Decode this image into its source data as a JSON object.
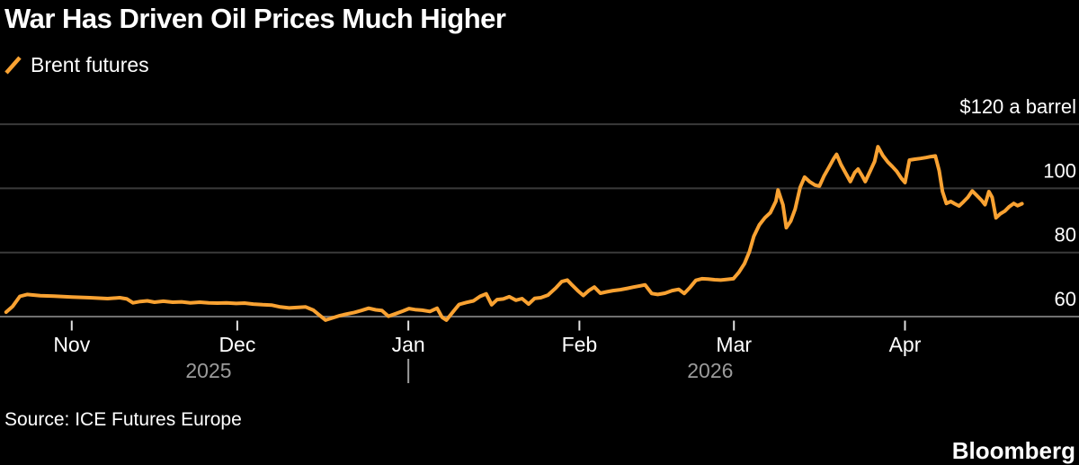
{
  "title": "War Has Driven Oil Prices Much Higher",
  "legend": {
    "label": "Brent futures"
  },
  "source": "Source: ICE Futures Europe",
  "brand": "Bloomberg",
  "colors": {
    "background": "#000000",
    "line": "#F9A232",
    "gridline": "#3A3A3A",
    "baseline": "#707070",
    "axis_text": "#FFFFFF",
    "muted_text": "#9B9B9B",
    "tick": "#E2E2E2"
  },
  "chart_data": {
    "type": "line",
    "title": "War Has Driven Oil Prices Much Higher",
    "unit_label": "$120 a barrel",
    "x_unit": "days since 2025-10-19",
    "x_range_dates": [
      "2025-10-20",
      "2026-04-22"
    ],
    "ylim": [
      56,
      124
    ],
    "grid": "horizontal",
    "legend_position": "top-left",
    "y_ticks": [
      {
        "value": 120,
        "label": "$120 a barrel"
      },
      {
        "value": 100,
        "label": "100"
      },
      {
        "value": 80,
        "label": "80"
      },
      {
        "value": 60,
        "label": "60"
      }
    ],
    "x_month_ticks": [
      {
        "label": "Nov",
        "day": 13,
        "date": "2025-11-01"
      },
      {
        "label": "Dec",
        "day": 43,
        "date": "2025-12-01"
      },
      {
        "label": "Jan",
        "day": 74,
        "date": "2026-01-01"
      },
      {
        "label": "Feb",
        "day": 105,
        "date": "2026-02-01"
      },
      {
        "label": "Mar",
        "day": 133,
        "date": "2026-03-01"
      },
      {
        "label": "Apr",
        "day": 164,
        "date": "2026-04-01"
      }
    ],
    "x_year_labels": [
      {
        "label": "2025",
        "center_day": 37.8
      },
      {
        "label": "2026",
        "center_day": 128.7
      }
    ],
    "year_boundary_day": 74,
    "series": [
      {
        "name": "Brent futures",
        "color": "#F9A232",
        "points": [
          [
            1.1,
            61.4
          ],
          [
            2.3,
            63.2
          ],
          [
            3.6,
            66.3
          ],
          [
            4.9,
            66.9
          ],
          [
            7.3,
            66.5
          ],
          [
            9.8,
            66.4
          ],
          [
            13,
            66.1
          ],
          [
            16.3,
            65.9
          ],
          [
            19.5,
            65.6
          ],
          [
            21.7,
            65.9
          ],
          [
            23,
            65.5
          ],
          [
            24.1,
            64.3
          ],
          [
            25.4,
            64.7
          ],
          [
            26.7,
            64.9
          ],
          [
            28,
            64.5
          ],
          [
            29.6,
            64.8
          ],
          [
            31.3,
            64.5
          ],
          [
            32.9,
            64.6
          ],
          [
            34.5,
            64.3
          ],
          [
            36.2,
            64.5
          ],
          [
            37.8,
            64.3
          ],
          [
            39.4,
            64.2
          ],
          [
            41,
            64.3
          ],
          [
            42.8,
            64.1
          ],
          [
            44.3,
            64.2
          ],
          [
            45.9,
            63.9
          ],
          [
            47.6,
            63.7
          ],
          [
            49.2,
            63.6
          ],
          [
            50.8,
            63.0
          ],
          [
            52.4,
            62.7
          ],
          [
            54.1,
            62.9
          ],
          [
            55.4,
            63.0
          ],
          [
            56.8,
            62.0
          ],
          [
            58,
            60.3
          ],
          [
            59,
            58.9
          ],
          [
            60.3,
            59.6
          ],
          [
            61.6,
            60.3
          ],
          [
            62.9,
            60.8
          ],
          [
            64.2,
            61.3
          ],
          [
            65.5,
            61.9
          ],
          [
            66.8,
            62.6
          ],
          [
            68.1,
            62.1
          ],
          [
            69.2,
            61.9
          ],
          [
            70.4,
            60.1
          ],
          [
            71.7,
            60.9
          ],
          [
            73,
            61.7
          ],
          [
            74.1,
            62.5
          ],
          [
            75.2,
            62.2
          ],
          [
            76.5,
            62.0
          ],
          [
            77.9,
            61.6
          ],
          [
            79.2,
            62.6
          ],
          [
            80.1,
            59.8
          ],
          [
            80.9,
            58.9
          ],
          [
            82.1,
            61.5
          ],
          [
            83.2,
            63.8
          ],
          [
            84.5,
            64.4
          ],
          [
            85.8,
            64.9
          ],
          [
            87,
            66.3
          ],
          [
            88.1,
            67.1
          ],
          [
            89.1,
            63.7
          ],
          [
            90.1,
            65.3
          ],
          [
            91.2,
            65.5
          ],
          [
            92.3,
            66.2
          ],
          [
            93.5,
            65.1
          ],
          [
            94.6,
            65.6
          ],
          [
            95.8,
            63.9
          ],
          [
            96.9,
            65.7
          ],
          [
            98,
            65.9
          ],
          [
            99.3,
            66.7
          ],
          [
            100.7,
            68.9
          ],
          [
            101.8,
            70.9
          ],
          [
            102.8,
            71.4
          ],
          [
            103.7,
            69.8
          ],
          [
            104.7,
            68.1
          ],
          [
            105.7,
            66.6
          ],
          [
            106.7,
            68.1
          ],
          [
            107.7,
            69.2
          ],
          [
            108.8,
            67.3
          ],
          [
            109.9,
            67.7
          ],
          [
            111.1,
            68.1
          ],
          [
            112.4,
            68.4
          ],
          [
            113.7,
            68.8
          ],
          [
            114.8,
            69.2
          ],
          [
            116,
            69.6
          ],
          [
            116.9,
            69.9
          ],
          [
            118.1,
            67.2
          ],
          [
            119.2,
            66.9
          ],
          [
            120.5,
            67.3
          ],
          [
            121.8,
            68.1
          ],
          [
            123,
            68.5
          ],
          [
            124,
            67.2
          ],
          [
            125.1,
            69.2
          ],
          [
            126.1,
            71.3
          ],
          [
            127.2,
            71.8
          ],
          [
            128.3,
            71.7
          ],
          [
            129.5,
            71.5
          ],
          [
            130.6,
            71.4
          ],
          [
            131.8,
            71.6
          ],
          [
            132.9,
            71.8
          ],
          [
            133.9,
            73.8
          ],
          [
            134.9,
            76.5
          ],
          [
            135.8,
            80.2
          ],
          [
            136.6,
            85.0
          ],
          [
            137.6,
            88.6
          ],
          [
            138.6,
            90.8
          ],
          [
            139.6,
            92.4
          ],
          [
            140.6,
            96.0
          ],
          [
            141.0,
            99.5
          ],
          [
            141.9,
            94.8
          ],
          [
            142.5,
            87.7
          ],
          [
            143.3,
            89.8
          ],
          [
            144.1,
            93.5
          ],
          [
            145.0,
            100.3
          ],
          [
            145.8,
            103.5
          ],
          [
            146.7,
            102.1
          ],
          [
            147.7,
            101.0
          ],
          [
            148.5,
            100.7
          ],
          [
            149.3,
            103.8
          ],
          [
            150.2,
            106.5
          ],
          [
            151.1,
            109.3
          ],
          [
            151.6,
            110.6
          ],
          [
            152.4,
            107.4
          ],
          [
            153.3,
            104.6
          ],
          [
            154.1,
            102.1
          ],
          [
            154.9,
            104.9
          ],
          [
            155.5,
            106.0
          ],
          [
            156.2,
            104.0
          ],
          [
            156.8,
            102.1
          ],
          [
            157.7,
            105.4
          ],
          [
            158.5,
            108.4
          ],
          [
            159.1,
            113.0
          ],
          [
            160.0,
            110.2
          ],
          [
            160.9,
            108.2
          ],
          [
            161.7,
            106.8
          ],
          [
            162.5,
            105.3
          ],
          [
            163.4,
            103.0
          ],
          [
            164.0,
            101.8
          ],
          [
            164.8,
            108.8
          ],
          [
            165.8,
            109.1
          ],
          [
            166.8,
            109.3
          ],
          [
            167.8,
            109.6
          ],
          [
            168.7,
            109.9
          ],
          [
            169.5,
            110.1
          ],
          [
            170.2,
            105.5
          ],
          [
            170.8,
            99.0
          ],
          [
            171.5,
            95.3
          ],
          [
            172.3,
            95.9
          ],
          [
            173.0,
            95.2
          ],
          [
            173.8,
            94.5
          ],
          [
            174.6,
            95.8
          ],
          [
            175.4,
            97.2
          ],
          [
            176.2,
            99.2
          ],
          [
            177.0,
            97.8
          ],
          [
            177.9,
            96.2
          ],
          [
            178.5,
            94.9
          ],
          [
            179.2,
            99.0
          ],
          [
            179.8,
            97.2
          ],
          [
            180.5,
            90.8
          ],
          [
            181.3,
            92.1
          ],
          [
            182.1,
            92.9
          ],
          [
            182.9,
            94.3
          ],
          [
            183.7,
            95.3
          ],
          [
            184.4,
            94.6
          ],
          [
            185.2,
            95.2
          ]
        ]
      }
    ]
  }
}
